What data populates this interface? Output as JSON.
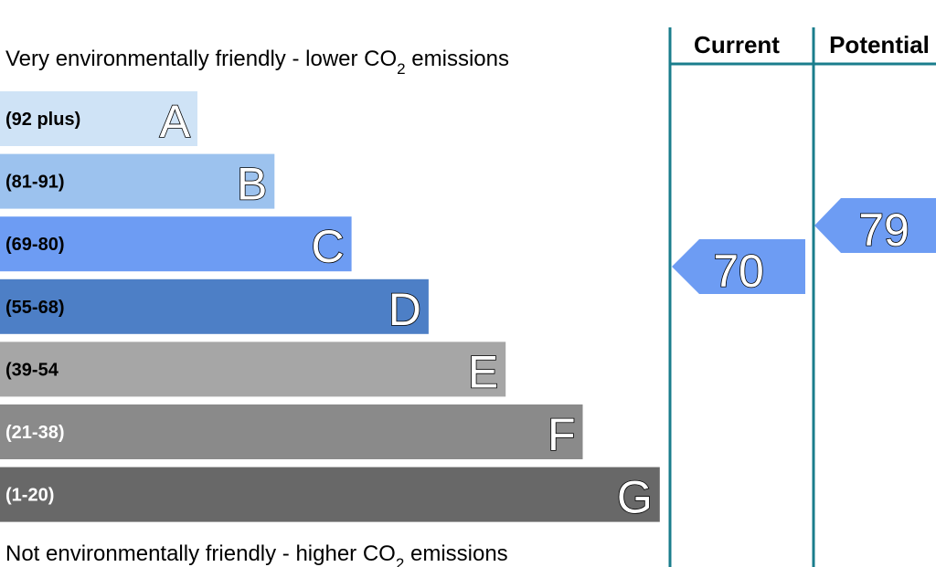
{
  "top_text": {
    "before": "Very environmentally friendly - lower CO",
    "sub": "2",
    "after": " emissions"
  },
  "bottom_text": {
    "before": "Not environmentally friendly - higher CO",
    "sub": "2",
    "after": " emissions"
  },
  "bands": [
    {
      "range": "(92 plus)",
      "letter": "A",
      "color": "#cfe3f6"
    },
    {
      "range": "(81-91)",
      "letter": "B",
      "color": "#9cc2ee"
    },
    {
      "range": "(69-80)",
      "letter": "C",
      "color": "#6d9cf3"
    },
    {
      "range": "(55-68)",
      "letter": "D",
      "color": "#4d7fc6"
    },
    {
      "range": "(39-54",
      "letter": "E",
      "color": "#a6a6a6"
    },
    {
      "range": "(21-38)",
      "letter": "F",
      "color": "#8a8a8a"
    },
    {
      "range": "(1-20)",
      "letter": "G",
      "color": "#686868"
    }
  ],
  "columns": {
    "current": "Current",
    "potential": "Potential"
  },
  "current_rating": {
    "value": 70,
    "color": "#6d9cf3"
  },
  "potential_rating": {
    "value": 79,
    "color": "#6d9cf3"
  }
}
